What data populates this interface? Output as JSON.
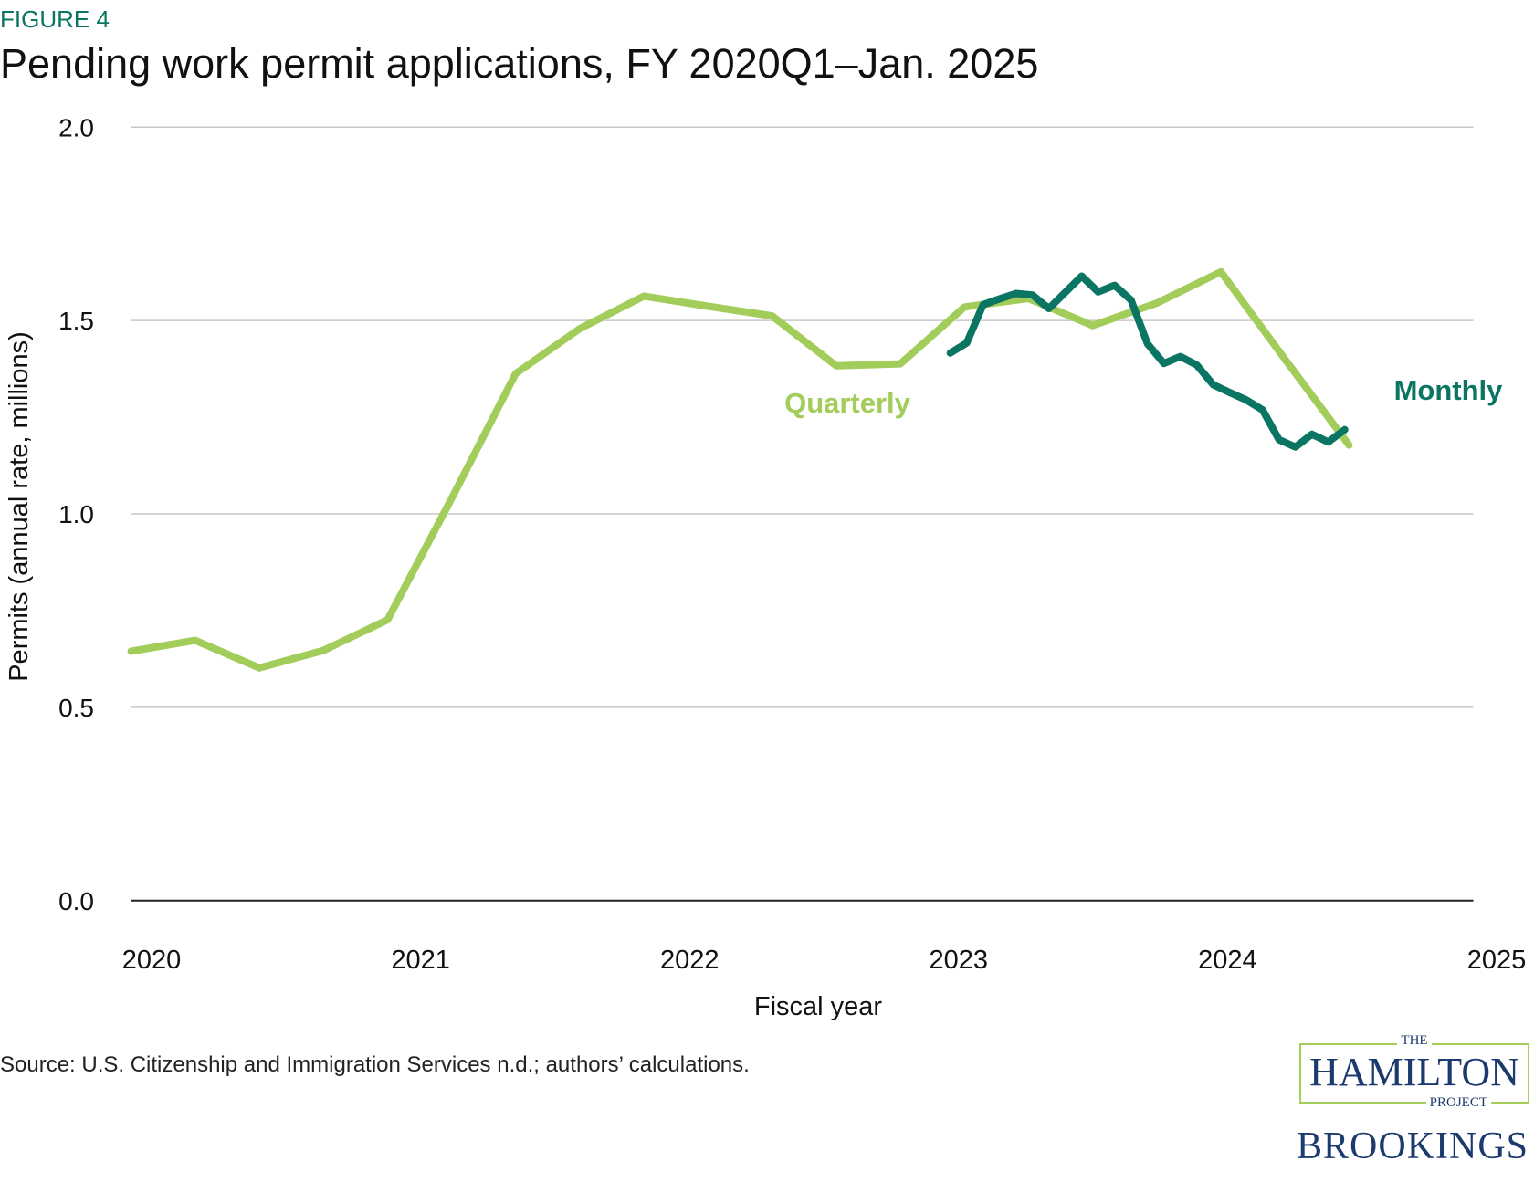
{
  "figure_label": "FIGURE 4",
  "title": "Pending work permit applications, FY 2020Q1–Jan. 2025",
  "source": "Source: U.S. Citizenship and Immigration Services n.d.; authors’ calculations.",
  "logos": {
    "hamilton_the": "THE",
    "hamilton": "HAMILTON",
    "hamilton_project": "PROJECT",
    "brookings": "BROOKINGS"
  },
  "colors": {
    "quarterly": "#a2cd5a",
    "monthly": "#0a7562",
    "grid": "#c8c8c8",
    "axis": "#222222"
  },
  "chart_data": {
    "type": "line",
    "xlabel": "Fiscal year",
    "ylabel": "Permits (annual rate, millions)",
    "ylim": [
      0,
      2.0
    ],
    "yticks": [
      "0.0",
      "0.5",
      "1.0",
      "1.5",
      "2.0"
    ],
    "xticks": [
      "2020",
      "2021",
      "2022",
      "2023",
      "2024",
      "2025"
    ],
    "grid": true,
    "series": [
      {
        "name": "Quarterly",
        "x": [
          "2020Q1",
          "2020Q2",
          "2020Q3",
          "2020Q4",
          "2021Q1",
          "2021Q2",
          "2021Q3",
          "2021Q4",
          "2022Q1",
          "2022Q2",
          "2022Q3",
          "2022Q4",
          "2023Q1",
          "2023Q2",
          "2023Q3",
          "2023Q4",
          "2024Q1",
          "2024Q2",
          "2024Q3",
          "2024Q4"
        ],
        "values": [
          0.645,
          0.673,
          0.602,
          0.647,
          0.726,
          1.04,
          1.363,
          1.479,
          1.563,
          1.537,
          1.512,
          1.383,
          1.388,
          1.535,
          1.557,
          1.487,
          1.545,
          1.626,
          1.4,
          1.178
        ]
      },
      {
        "name": "Monthly",
        "x": [
          "Jan 2023",
          "Feb 2023",
          "Mar 2023",
          "Apr 2023",
          "May 2023",
          "Jun 2023",
          "Jul 2023",
          "Aug 2023",
          "Sep 2023",
          "Oct 2023",
          "Nov 2023",
          "Dec 2023",
          "Jan 2024",
          "Feb 2024",
          "Mar 2024",
          "Apr 2024",
          "May 2024",
          "Jun 2024",
          "Jul 2024",
          "Aug 2024",
          "Sep 2024",
          "Oct 2024",
          "Nov 2024",
          "Dec 2024",
          "Jan 2025"
        ],
        "values": [
          1.416,
          1.442,
          1.541,
          1.556,
          1.57,
          1.566,
          1.531,
          1.573,
          1.615,
          1.574,
          1.591,
          1.553,
          1.44,
          1.389,
          1.407,
          1.385,
          1.334,
          1.314,
          1.295,
          1.269,
          1.192,
          1.173,
          1.206,
          1.186,
          1.218
        ]
      }
    ]
  }
}
